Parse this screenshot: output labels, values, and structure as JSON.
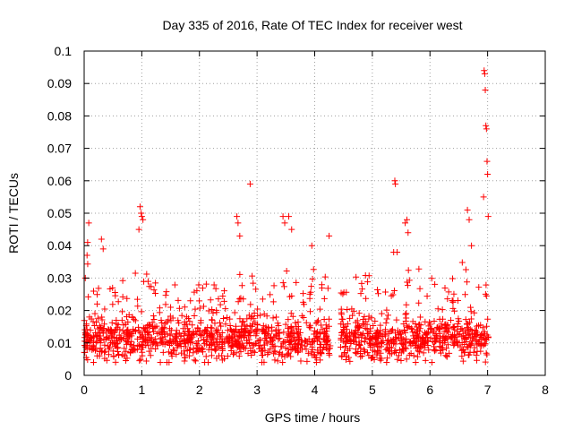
{
  "chart_data": {
    "type": "scatter",
    "title": "Day 335 of 2016, Rate Of TEC Index for receiver west",
    "xlabel": "GPS time / hours",
    "ylabel": "ROTI / TECUs",
    "xlim": [
      0,
      8
    ],
    "ylim": [
      0,
      0.1
    ],
    "grid": true,
    "marker": "+",
    "xticks": [
      "0",
      "1",
      "2",
      "3",
      "4",
      "5",
      "6",
      "7",
      "8"
    ],
    "yticks": [
      "0",
      "0.01",
      "0.02",
      "0.03",
      "0.04",
      "0.05",
      "0.06",
      "0.07",
      "0.08",
      "0.09",
      "0.1"
    ],
    "series": [
      {
        "name": "ROTI",
        "color": "#ff0000",
        "x": [
          0.02,
          0.05,
          0.06,
          0.08,
          0.3,
          0.33,
          0.95,
          0.97,
          0.99,
          1.0,
          1.02,
          2.65,
          2.67,
          2.7,
          2.88,
          3.45,
          3.48,
          3.55,
          3.6,
          3.95,
          4.25,
          5.37,
          5.39,
          5.4,
          5.43,
          5.57,
          5.6,
          5.62,
          6.65,
          6.68,
          6.72,
          6.93,
          6.94,
          6.95,
          6.96,
          6.97,
          6.98,
          6.99,
          7.0,
          7.01
        ],
        "y": [
          0.03,
          0.037,
          0.041,
          0.047,
          0.042,
          0.039,
          0.045,
          0.052,
          0.05,
          0.049,
          0.048,
          0.049,
          0.047,
          0.043,
          0.059,
          0.049,
          0.047,
          0.049,
          0.045,
          0.04,
          0.043,
          0.038,
          0.06,
          0.059,
          0.038,
          0.047,
          0.048,
          0.044,
          0.051,
          0.048,
          0.04,
          0.055,
          0.094,
          0.093,
          0.088,
          0.077,
          0.076,
          0.066,
          0.062,
          0.049
        ]
      }
    ],
    "background": {
      "description_segments_hours": [
        [
          0,
          4.27
        ],
        [
          4.45,
          7.02
        ]
      ],
      "base_level": 0.011,
      "spread": 0.006
    }
  }
}
